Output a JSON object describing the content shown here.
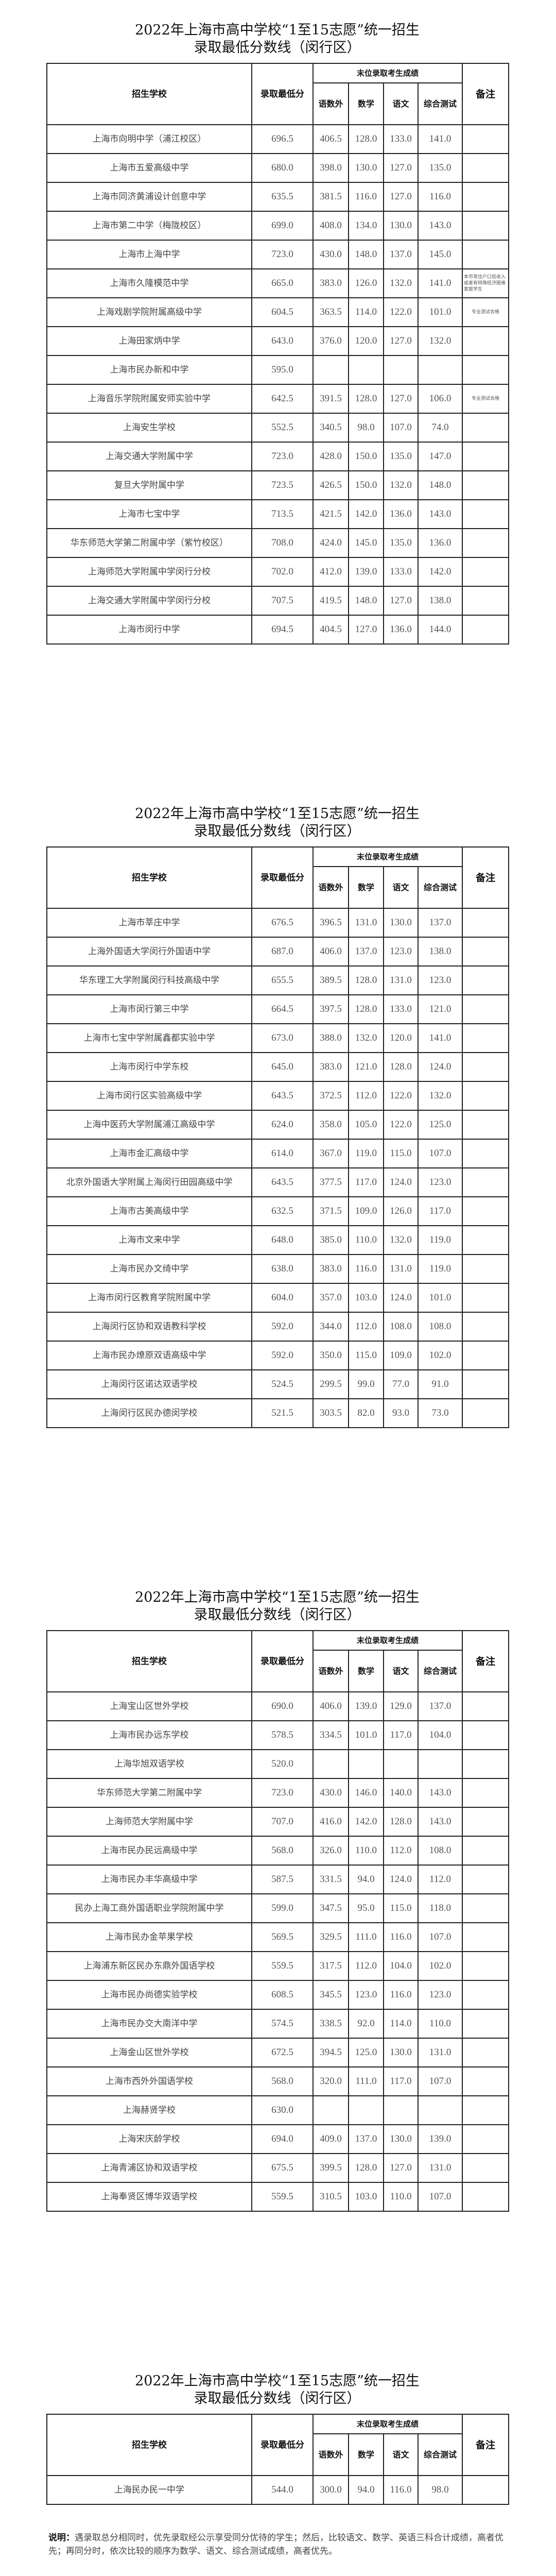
{
  "title_line1": "2022年上海市高中学校“1至15志愿”统一招生",
  "title_line2": "录取最低分数线（闵行区）",
  "header": {
    "school": "招生学校",
    "min_score": "录取最低分",
    "group": "末位录取考生成绩",
    "total3": "语数外",
    "math": "数学",
    "chinese": "语文",
    "comprehensive": "综合测试",
    "remark": "备注"
  },
  "tables": [
    {
      "rows": [
        [
          "上海市向明中学（浦江校区）",
          "696.5",
          "406.5",
          "128.0",
          "133.0",
          "141.0",
          ""
        ],
        [
          "上海市五爱高级中学",
          "680.0",
          "398.0",
          "130.0",
          "127.0",
          "135.0",
          ""
        ],
        [
          "上海市同济黄浦设计创意中学",
          "635.5",
          "381.5",
          "116.0",
          "127.0",
          "116.0",
          ""
        ],
        [
          "上海市第二中学（梅陇校区）",
          "699.0",
          "408.0",
          "134.0",
          "130.0",
          "143.0",
          ""
        ],
        [
          "上海市上海中学",
          "723.0",
          "430.0",
          "148.0",
          "137.0",
          "145.0",
          ""
        ],
        [
          "上海市久隆模范中学",
          "665.0",
          "383.0",
          "126.0",
          "132.0",
          "141.0",
          "本市常住户口低收入或者有特殊经济困难家庭学生"
        ],
        [
          "上海戏剧学院附属高级中学",
          "604.5",
          "363.5",
          "114.0",
          "122.0",
          "101.0",
          "专业测试合格"
        ],
        [
          "上海田家炳中学",
          "643.0",
          "376.0",
          "120.0",
          "127.0",
          "132.0",
          ""
        ],
        [
          "上海市民办新和中学",
          "595.0",
          "",
          "",
          "",
          "",
          ""
        ],
        [
          "上海音乐学院附属安师实验中学",
          "642.5",
          "391.5",
          "128.0",
          "127.0",
          "106.0",
          "专业测试合格"
        ],
        [
          "上海安生学校",
          "552.5",
          "340.5",
          "98.0",
          "107.0",
          "74.0",
          ""
        ],
        [
          "上海交通大学附属中学",
          "723.0",
          "428.0",
          "150.0",
          "135.0",
          "147.0",
          ""
        ],
        [
          "复旦大学附属中学",
          "723.5",
          "426.5",
          "150.0",
          "132.0",
          "148.0",
          ""
        ],
        [
          "上海市七宝中学",
          "713.5",
          "421.5",
          "142.0",
          "136.0",
          "143.0",
          ""
        ],
        [
          "华东师范大学第二附属中学（紫竹校区）",
          "708.0",
          "424.0",
          "145.0",
          "135.0",
          "136.0",
          ""
        ],
        [
          "上海师范大学附属中学闵行分校",
          "702.0",
          "412.0",
          "139.0",
          "133.0",
          "142.0",
          ""
        ],
        [
          "上海交通大学附属中学闵行分校",
          "707.5",
          "419.5",
          "148.0",
          "127.0",
          "138.0",
          ""
        ],
        [
          "上海市闵行中学",
          "694.5",
          "404.5",
          "127.0",
          "136.0",
          "144.0",
          ""
        ]
      ]
    },
    {
      "rows": [
        [
          "上海市莘庄中学",
          "676.5",
          "396.5",
          "131.0",
          "130.0",
          "137.0",
          ""
        ],
        [
          "上海外国语大学闵行外国语中学",
          "687.0",
          "406.0",
          "137.0",
          "123.0",
          "138.0",
          ""
        ],
        [
          "华东理工大学附属闵行科技高级中学",
          "655.5",
          "389.5",
          "128.0",
          "131.0",
          "123.0",
          ""
        ],
        [
          "上海市闵行第三中学",
          "664.5",
          "397.5",
          "128.0",
          "133.0",
          "121.0",
          ""
        ],
        [
          "上海市七宝中学附属鑫都实验中学",
          "673.0",
          "388.0",
          "132.0",
          "120.0",
          "141.0",
          ""
        ],
        [
          "上海市闵行中学东校",
          "645.0",
          "383.0",
          "121.0",
          "128.0",
          "124.0",
          ""
        ],
        [
          "上海市闵行区实验高级中学",
          "643.5",
          "372.5",
          "112.0",
          "122.0",
          "132.0",
          ""
        ],
        [
          "上海中医药大学附属浦江高级中学",
          "624.0",
          "358.0",
          "105.0",
          "122.0",
          "125.0",
          ""
        ],
        [
          "上海市金汇高级中学",
          "614.0",
          "367.0",
          "119.0",
          "115.0",
          "107.0",
          ""
        ],
        [
          "北京外国语大学附属上海闵行田园高级中学",
          "643.5",
          "377.5",
          "117.0",
          "124.0",
          "123.0",
          ""
        ],
        [
          "上海市古美高级中学",
          "632.5",
          "371.5",
          "109.0",
          "126.0",
          "117.0",
          ""
        ],
        [
          "上海市文来中学",
          "648.0",
          "385.0",
          "110.0",
          "132.0",
          "119.0",
          ""
        ],
        [
          "上海市民办文绮中学",
          "638.0",
          "383.0",
          "116.0",
          "131.0",
          "119.0",
          ""
        ],
        [
          "上海市闵行区教育学院附属中学",
          "604.0",
          "357.0",
          "103.0",
          "124.0",
          "101.0",
          ""
        ],
        [
          "上海闵行区协和双语教科学校",
          "592.0",
          "344.0",
          "112.0",
          "108.0",
          "108.0",
          ""
        ],
        [
          "上海市民办燎原双语高级中学",
          "592.0",
          "350.0",
          "115.0",
          "109.0",
          "102.0",
          ""
        ],
        [
          "上海闵行区诺达双语学校",
          "524.5",
          "299.5",
          "99.0",
          "77.0",
          "91.0",
          ""
        ],
        [
          "上海闵行区民办德闵学校",
          "521.5",
          "303.5",
          "82.0",
          "93.0",
          "73.0",
          ""
        ]
      ]
    },
    {
      "rows": [
        [
          "上海宝山区世外学校",
          "690.0",
          "406.0",
          "139.0",
          "129.0",
          "137.0",
          ""
        ],
        [
          "上海市民办远东学校",
          "578.5",
          "334.5",
          "101.0",
          "117.0",
          "104.0",
          ""
        ],
        [
          "上海华旭双语学校",
          "520.0",
          "",
          "",
          "",
          "",
          ""
        ],
        [
          "华东师范大学第二附属中学",
          "723.0",
          "430.0",
          "146.0",
          "140.0",
          "143.0",
          ""
        ],
        [
          "上海师范大学附属中学",
          "707.0",
          "416.0",
          "142.0",
          "128.0",
          "143.0",
          ""
        ],
        [
          "上海市民办民远高级中学",
          "568.0",
          "326.0",
          "110.0",
          "112.0",
          "108.0",
          ""
        ],
        [
          "上海市民办丰华高级中学",
          "587.5",
          "331.5",
          "94.0",
          "124.0",
          "112.0",
          ""
        ],
        [
          "民办上海工商外国语职业学院附属中学",
          "599.0",
          "347.5",
          "95.0",
          "115.0",
          "118.0",
          ""
        ],
        [
          "上海市民办金苹果学校",
          "569.5",
          "329.5",
          "111.0",
          "116.0",
          "107.0",
          ""
        ],
        [
          "上海浦东新区民办东鼎外国语学校",
          "559.5",
          "317.5",
          "112.0",
          "104.0",
          "102.0",
          ""
        ],
        [
          "上海市民办尚德实验学校",
          "608.5",
          "345.5",
          "123.0",
          "116.0",
          "123.0",
          ""
        ],
        [
          "上海市民办交大南洋中学",
          "574.5",
          "338.5",
          "92.0",
          "114.0",
          "110.0",
          ""
        ],
        [
          "上海金山区世外学校",
          "672.5",
          "394.5",
          "125.0",
          "130.0",
          "131.0",
          ""
        ],
        [
          "上海市西外外国语学校",
          "568.0",
          "320.0",
          "111.0",
          "117.0",
          "107.0",
          ""
        ],
        [
          "上海赫贤学校",
          "630.0",
          "",
          "",
          "",
          "",
          ""
        ],
        [
          "上海宋庆龄学校",
          "694.0",
          "409.0",
          "137.0",
          "130.0",
          "139.0",
          ""
        ],
        [
          "上海青浦区协和双语学校",
          "675.5",
          "399.5",
          "128.0",
          "127.0",
          "131.0",
          ""
        ],
        [
          "上海奉贤区博华双语学校",
          "559.5",
          "310.5",
          "103.0",
          "110.0",
          "107.0",
          ""
        ]
      ]
    },
    {
      "rows": [
        [
          "上海民办民一中学",
          "544.0",
          "300.0",
          "94.0",
          "116.0",
          "98.0",
          ""
        ]
      ]
    }
  ],
  "note": {
    "label": "说明：",
    "text": "遇录取总分相同时，优先录取经公示享受同分优待的学生；然后，比较语文、数学、英语三科合计成绩，高者优先；再同分时，依次比较的顺序为数学、语文、综合测试成绩，高者优先。"
  }
}
